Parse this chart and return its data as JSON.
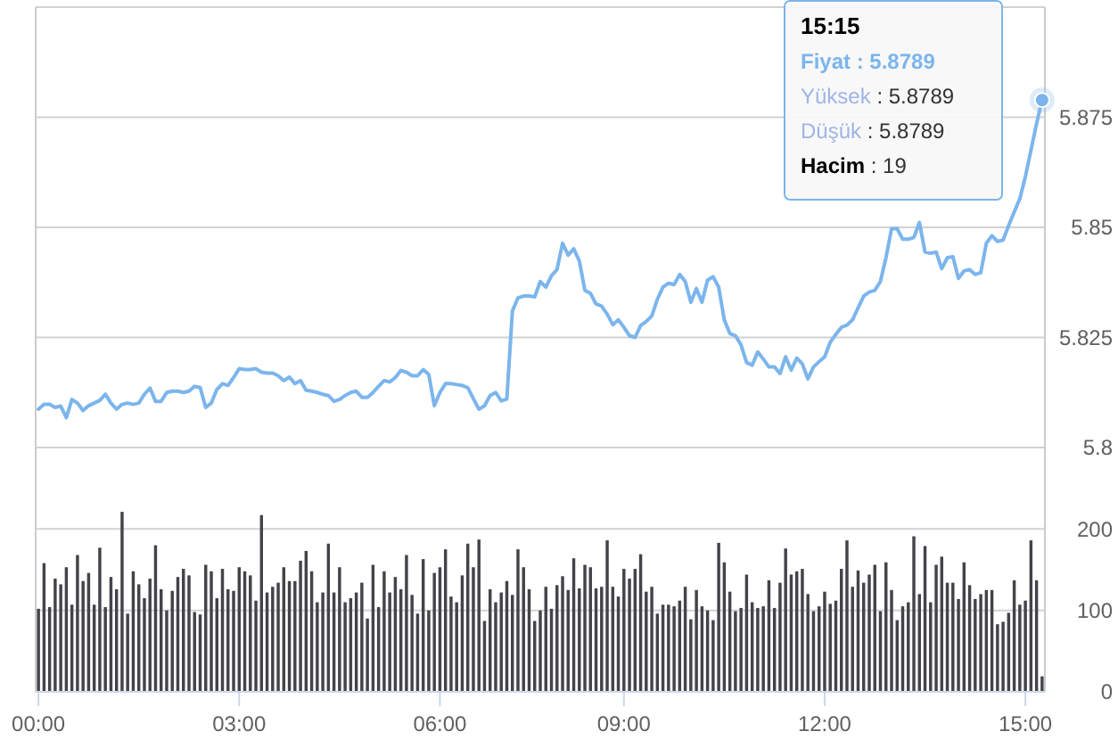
{
  "chart_data": [
    {
      "type": "line",
      "categories": [
        null,
        null,
        null,
        null,
        null,
        null,
        null,
        null,
        null,
        null,
        null,
        null,
        null,
        null,
        null,
        null,
        null,
        null,
        null,
        null,
        null,
        null,
        null,
        null,
        null,
        null,
        null,
        null,
        null,
        null,
        null,
        null,
        null,
        null,
        null,
        null,
        null,
        null,
        null,
        null,
        null,
        null,
        null,
        null,
        null,
        null,
        null,
        null,
        null,
        null,
        null,
        null,
        null,
        null,
        null,
        null,
        null,
        null,
        null,
        null,
        null,
        null,
        null,
        null,
        null,
        null,
        null,
        null,
        null,
        null,
        null,
        null,
        null,
        null,
        null,
        null,
        null,
        null,
        null,
        null,
        null,
        null,
        null,
        null,
        null,
        null,
        null,
        null,
        null,
        null,
        null,
        null,
        null,
        null,
        null,
        null,
        null,
        null,
        null,
        null,
        null,
        null,
        null,
        null,
        null,
        null,
        null,
        null,
        null,
        null,
        null,
        null,
        null,
        null,
        null,
        null,
        null,
        null,
        null,
        null,
        null,
        null,
        null,
        null,
        null,
        null,
        null,
        null,
        null,
        null,
        null,
        null,
        null,
        null,
        null,
        null,
        null,
        null,
        null,
        null,
        null,
        null,
        null,
        null,
        null,
        null,
        null,
        null,
        null,
        null,
        null,
        null,
        null,
        null,
        null,
        null,
        null,
        null,
        null,
        null,
        null,
        null,
        null,
        null,
        null,
        null,
        null,
        null,
        null,
        null,
        null,
        null,
        null,
        null,
        null,
        null,
        null,
        null,
        null,
        null,
        null
      ],
      "values": [
        5.8087,
        5.8098,
        5.8098,
        5.8091,
        5.8094,
        5.8068,
        5.8109,
        5.8101,
        5.8084,
        5.8095,
        5.8101,
        5.8107,
        5.8121,
        5.8101,
        5.8087,
        5.8098,
        5.8101,
        5.8098,
        5.8101,
        5.8121,
        5.8135,
        5.8105,
        5.8105,
        5.8125,
        5.8128,
        5.8128,
        5.8125,
        5.8128,
        5.8139,
        5.8136,
        5.8091,
        5.8101,
        5.8132,
        5.8145,
        5.8141,
        5.8159,
        5.8179,
        5.8177,
        5.8177,
        5.8179,
        5.8171,
        5.8169,
        5.8169,
        5.8163,
        5.8152,
        5.816,
        5.8145,
        5.8152,
        5.813,
        5.8128,
        5.8125,
        5.8121,
        5.8118,
        5.8105,
        5.8109,
        5.8118,
        5.8125,
        5.8128,
        5.8114,
        5.8114,
        5.8125,
        5.8139,
        5.8152,
        5.8149,
        5.8159,
        5.8175,
        5.8171,
        5.8163,
        5.8163,
        5.8177,
        5.8166,
        5.8095,
        5.8125,
        5.8145,
        5.8145,
        5.8143,
        5.8141,
        5.8136,
        5.8111,
        5.8087,
        5.8095,
        5.8118,
        5.8125,
        5.8106,
        5.811,
        5.831,
        5.834,
        5.8344,
        5.8344,
        5.8342,
        5.8377,
        5.8364,
        5.839,
        5.8404,
        5.8464,
        5.8437,
        5.8451,
        5.8424,
        5.8357,
        5.835,
        5.8326,
        5.8321,
        5.8303,
        5.8279,
        5.829,
        5.8273,
        5.8254,
        5.825,
        5.8277,
        5.8286,
        5.8299,
        5.8337,
        5.8364,
        5.8373,
        5.837,
        5.8393,
        5.8377,
        5.833,
        5.8361,
        5.833,
        5.838,
        5.8388,
        5.8364,
        5.829,
        5.8259,
        5.8254,
        5.8233,
        5.8193,
        5.8187,
        5.8217,
        5.8201,
        5.8183,
        5.8183,
        5.8168,
        5.8206,
        5.8176,
        5.8203,
        5.819,
        5.8156,
        5.8183,
        5.8195,
        5.8206,
        5.8239,
        5.8257,
        5.8273,
        5.8278,
        5.829,
        5.8317,
        5.8344,
        5.8353,
        5.8357,
        5.8377,
        5.8431,
        5.8497,
        5.8497,
        5.8473,
        5.8473,
        5.8477,
        5.8511,
        5.8444,
        5.8441,
        5.8444,
        5.8406,
        5.8431,
        5.8433,
        5.8384,
        5.8401,
        5.8404,
        5.8393,
        5.8397,
        5.8464,
        5.8481,
        5.8468,
        5.8471,
        5.8504,
        5.8535,
        5.8565,
        5.8615,
        5.8675,
        5.8735,
        5.8789
      ],
      "color": "#7cb5ec",
      "ylim": [
        5.8,
        5.9
      ],
      "yticks": [
        5.8,
        5.825,
        5.85,
        5.875,
        {
          "value": 5.9,
          "label": null
        }
      ],
      "grid": "y",
      "tick_labels": "y",
      "annotations": [
        "15:15",
        "Fiyat : 5.8789",
        "Yüksek : 5.8789",
        "Düşük : 5.8789",
        "Hacim : 19"
      ]
    },
    {
      "type": "bar",
      "categories": [
        "00:00",
        null,
        null,
        null,
        null,
        null,
        null,
        null,
        null,
        null,
        null,
        null,
        null,
        null,
        null,
        null,
        null,
        null,
        null,
        null,
        null,
        null,
        null,
        null,
        null,
        null,
        null,
        null,
        null,
        null,
        null,
        null,
        null,
        null,
        null,
        null,
        "03:00",
        null,
        null,
        null,
        null,
        null,
        null,
        null,
        null,
        null,
        null,
        null,
        null,
        null,
        null,
        null,
        null,
        null,
        null,
        null,
        null,
        null,
        null,
        null,
        null,
        null,
        null,
        null,
        null,
        null,
        null,
        null,
        null,
        null,
        null,
        null,
        "06:00",
        null,
        null,
        null,
        null,
        null,
        null,
        null,
        null,
        null,
        null,
        null,
        null,
        null,
        null,
        null,
        null,
        null,
        null,
        null,
        null,
        null,
        null,
        null,
        null,
        null,
        null,
        null,
        null,
        null,
        null,
        null,
        null,
        "09:00",
        null,
        null,
        null,
        null,
        null,
        null,
        null,
        null,
        null,
        null,
        null,
        null,
        null,
        null,
        null,
        null,
        null,
        null,
        null,
        null,
        null,
        null,
        null,
        null,
        null,
        null,
        null,
        null,
        null,
        null,
        null,
        null,
        null,
        null,
        null,
        "12:00",
        null,
        null,
        null,
        null,
        null,
        null,
        null,
        null,
        null,
        null,
        null,
        null,
        null,
        null,
        null,
        null,
        null,
        null,
        null,
        null,
        null,
        null,
        null,
        null,
        null,
        null,
        null,
        null,
        null,
        null,
        null,
        null,
        null,
        null,
        null,
        "15:00",
        null,
        null,
        null
      ],
      "values": [
        102,
        158,
        104,
        139,
        132,
        153,
        107,
        168,
        136,
        146,
        107,
        177,
        104,
        141,
        126,
        221,
        96,
        148,
        132,
        115,
        139,
        180,
        126,
        100,
        124,
        141,
        151,
        143,
        98,
        95,
        156,
        148,
        115,
        151,
        126,
        124,
        153,
        148,
        143,
        112,
        217,
        122,
        129,
        134,
        153,
        136,
        136,
        161,
        173,
        148,
        110,
        122,
        182,
        122,
        153,
        110,
        115,
        122,
        134,
        90,
        156,
        104,
        148,
        122,
        141,
        126,
        168,
        119,
        96,
        163,
        100,
        146,
        153,
        175,
        117,
        110,
        143,
        182,
        153,
        187,
        87,
        126,
        110,
        122,
        136,
        119,
        175,
        153,
        126,
        87,
        100,
        129,
        102,
        131,
        142,
        125,
        164,
        127,
        156,
        153,
        127,
        129,
        186,
        129,
        117,
        151,
        139,
        151,
        169,
        123,
        129,
        96,
        107,
        107,
        105,
        112,
        129,
        89,
        125,
        105,
        100,
        88,
        183,
        159,
        123,
        99,
        103,
        144,
        110,
        103,
        105,
        137,
        103,
        134,
        176,
        144,
        148,
        151,
        120,
        99,
        105,
        123,
        108,
        112,
        151,
        186,
        129,
        149,
        134,
        144,
        156,
        99,
        159,
        125,
        88,
        105,
        110,
        191,
        120,
        179,
        110,
        156,
        166,
        134,
        134,
        114,
        159,
        131,
        114,
        120,
        125,
        125,
        83,
        86,
        97,
        137,
        107,
        112,
        186,
        137,
        19
      ],
      "color": "#434348",
      "ylim": [
        0,
        300
      ],
      "yticks": [
        0,
        100,
        200
      ],
      "grid": "y"
    }
  ]
}
